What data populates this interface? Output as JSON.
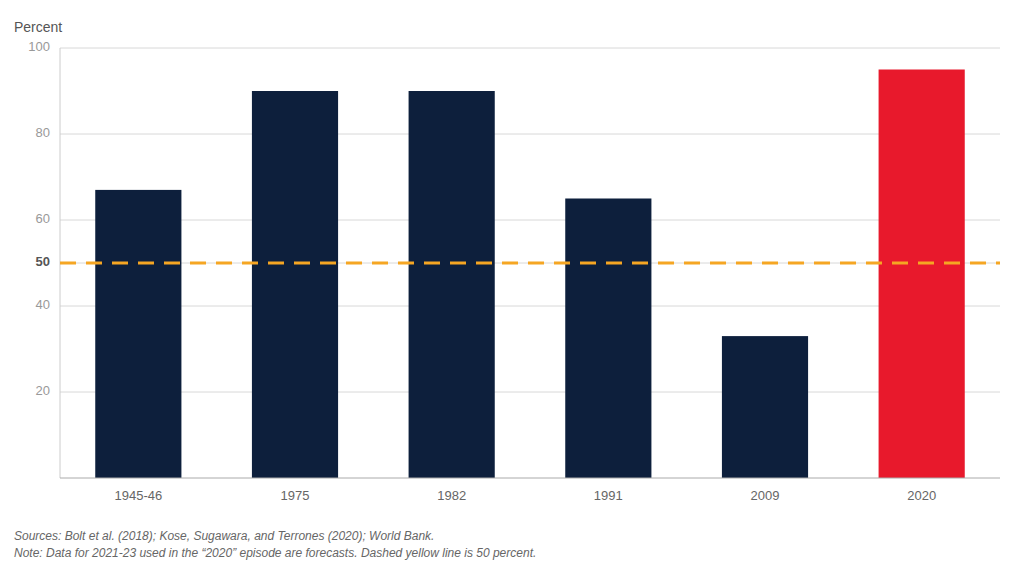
{
  "chart_data": {
    "type": "bar",
    "y_label": "Percent",
    "categories": [
      "1945-46",
      "1975",
      "1982",
      "1991",
      "2009",
      "2020"
    ],
    "values": [
      67,
      90,
      90,
      65,
      33,
      95
    ],
    "colors": [
      "#0d1f3c",
      "#0d1f3c",
      "#0d1f3c",
      "#0d1f3c",
      "#0d1f3c",
      "#e8192c"
    ],
    "ylim": [
      0,
      100
    ],
    "yticks": [
      20,
      40,
      50,
      60,
      80,
      100
    ],
    "grid": true,
    "reference_line": {
      "y": 50,
      "color": "#f5a623"
    },
    "annotation": "Sources: Bolt et al. (2018); Kose, Sugawara, and Terrones (2020); World Bank.\nNote: Data for 2021-23 used in the “2020” episode are forecasts. Dashed yellow line is 50 percent."
  }
}
